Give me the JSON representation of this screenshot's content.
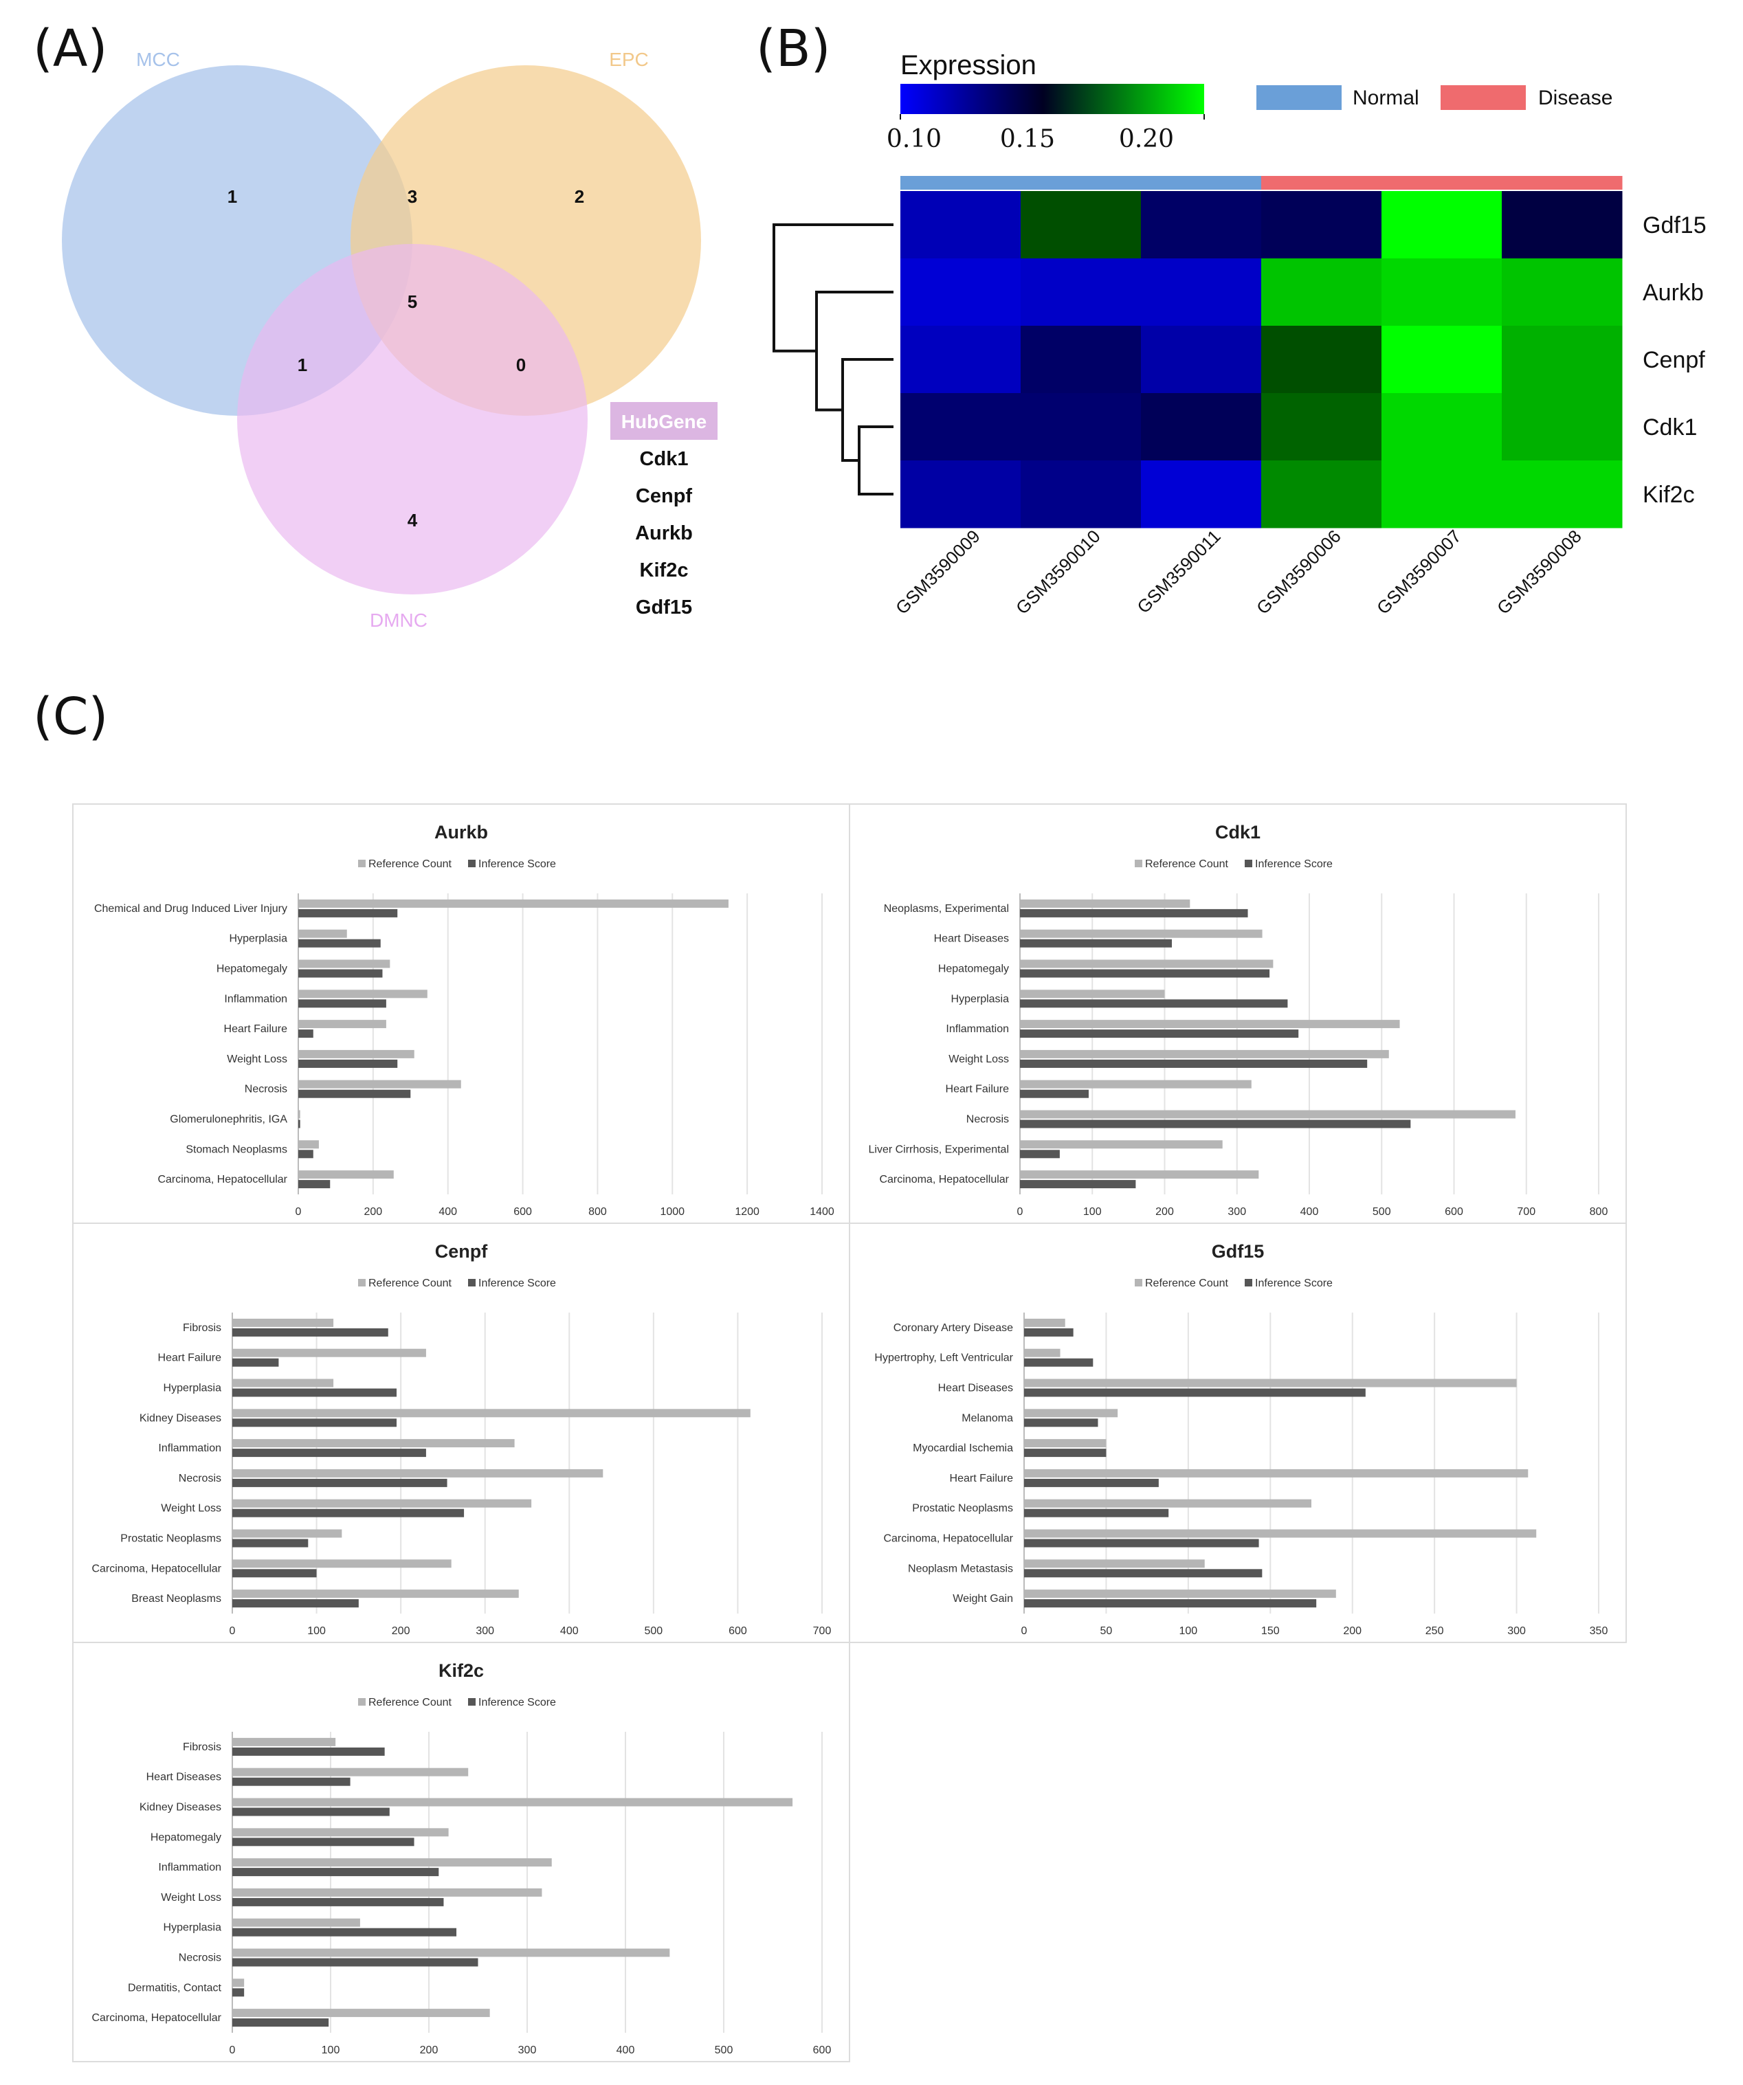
{
  "panels": {
    "a": "(A)",
    "b": "(B)",
    "c": "(C)"
  },
  "venn": {
    "sets": [
      {
        "name": "MCC",
        "color": "#a6c2ea",
        "label_color": "#a6c2ea"
      },
      {
        "name": "EPC",
        "color": "#f4cd8f",
        "label_color": "#f2c88a"
      },
      {
        "name": "DMNC",
        "color": "#eab8f0",
        "label_color": "#e6aaf0"
      }
    ],
    "regions": {
      "mcc_only": "1",
      "epc_only": "2",
      "mcc_epc": "3",
      "all_three": "5",
      "mcc_dmnc": "1",
      "epc_dmnc": "0",
      "dmnc_only": "4"
    },
    "hubgene_title": "HubGene",
    "hubgenes": [
      "Cdk1",
      "Cenpf",
      "Aurkb",
      "Kif2c",
      "Gdf15"
    ],
    "colors": {
      "hubgene_bg": "#dcb6e2"
    }
  },
  "heatmap": {
    "legend_title": "Expression",
    "scale_ticks": [
      "0.10",
      "0.15",
      "0.20"
    ],
    "groups": [
      {
        "name": "Normal",
        "color": "#6a9fd8"
      },
      {
        "name": "Disease",
        "color": "#ef6b6e"
      }
    ],
    "genes": [
      "Gdf15",
      "Aurkb",
      "Cenpf",
      "Cdk1",
      "Kif2c"
    ],
    "samples": [
      "GSM3590009",
      "GSM3590010",
      "GSM3590011",
      "GSM3590006",
      "GSM3590007",
      "GSM3590008"
    ],
    "sample_group": [
      "Normal",
      "Normal",
      "Normal",
      "Disease",
      "Disease",
      "Disease"
    ],
    "scale_colors": {
      "low": "#0000ff",
      "mid": "#000022",
      "high": "#00ff00"
    }
  },
  "chart_data": [
    {
      "type": "bar",
      "title": "Aurkb",
      "legend": [
        "Reference Count",
        "Inference Score"
      ],
      "categories": [
        "Chemical and Drug Induced Liver Injury",
        "Hyperplasia",
        "Hepatomegaly",
        "Inflammation",
        "Heart Failure",
        "Weight Loss",
        "Necrosis",
        "Glomerulonephritis, IGA",
        "Stomach Neoplasms",
        "Carcinoma, Hepatocellular"
      ],
      "series": [
        {
          "name": "Reference Count",
          "values": [
            1150,
            130,
            245,
            345,
            235,
            310,
            435,
            5,
            55,
            255
          ]
        },
        {
          "name": "Inference Score",
          "values": [
            265,
            220,
            225,
            235,
            40,
            265,
            300,
            5,
            40,
            85
          ]
        }
      ],
      "xticks": [
        "0",
        "200",
        "400",
        "600",
        "800",
        "1000",
        "1200",
        "1400"
      ],
      "xlim": [
        0,
        1400
      ]
    },
    {
      "type": "bar",
      "title": "Cdk1",
      "legend": [
        "Reference Count",
        "Inference Score"
      ],
      "categories": [
        "Neoplasms, Experimental",
        "Heart Diseases",
        "Hepatomegaly",
        "Hyperplasia",
        "Inflammation",
        "Weight Loss",
        "Heart Failure",
        "Necrosis",
        "Liver Cirrhosis, Experimental",
        "Carcinoma, Hepatocellular"
      ],
      "series": [
        {
          "name": "Reference Count",
          "values": [
            235,
            335,
            350,
            200,
            525,
            510,
            320,
            685,
            280,
            330
          ]
        },
        {
          "name": "Inference Score",
          "values": [
            315,
            210,
            345,
            370,
            385,
            480,
            95,
            540,
            55,
            160
          ]
        }
      ],
      "xticks": [
        "0",
        "100",
        "200",
        "300",
        "400",
        "500",
        "600",
        "700",
        "800"
      ],
      "xlim": [
        0,
        800
      ]
    },
    {
      "type": "bar",
      "title": "Cenpf",
      "legend": [
        "Reference Count",
        "Inference Score"
      ],
      "categories": [
        "Fibrosis",
        "Heart Failure",
        "Hyperplasia",
        "Kidney Diseases",
        "Inflammation",
        "Necrosis",
        "Weight Loss",
        "Prostatic Neoplasms",
        "Carcinoma, Hepatocellular",
        "Breast Neoplasms"
      ],
      "series": [
        {
          "name": "Reference Count",
          "values": [
            120,
            230,
            120,
            615,
            335,
            440,
            355,
            130,
            260,
            340
          ]
        },
        {
          "name": "Inference Score",
          "values": [
            185,
            55,
            195,
            195,
            230,
            255,
            275,
            90,
            100,
            150
          ]
        }
      ],
      "xticks": [
        "0",
        "100",
        "200",
        "300",
        "400",
        "500",
        "600",
        "700"
      ],
      "xlim": [
        0,
        700
      ]
    },
    {
      "type": "bar",
      "title": "Gdf15",
      "legend": [
        "Reference Count",
        "Inference Score"
      ],
      "categories": [
        "Coronary Artery Disease",
        "Hypertrophy, Left Ventricular",
        "Heart Diseases",
        "Melanoma",
        "Myocardial Ischemia",
        "Heart Failure",
        "Prostatic Neoplasms",
        "Carcinoma, Hepatocellular",
        "Neoplasm Metastasis",
        "Weight Gain"
      ],
      "series": [
        {
          "name": "Reference Count",
          "values": [
            25,
            22,
            300,
            57,
            50,
            307,
            175,
            312,
            110,
            190
          ]
        },
        {
          "name": "Inference Score",
          "values": [
            30,
            42,
            208,
            45,
            50,
            82,
            88,
            143,
            145,
            178
          ]
        }
      ],
      "xticks": [
        "0",
        "50",
        "100",
        "150",
        "200",
        "250",
        "300",
        "350"
      ],
      "xlim": [
        0,
        350
      ]
    },
    {
      "type": "bar",
      "title": "Kif2c",
      "legend": [
        "Reference Count",
        "Inference Score"
      ],
      "categories": [
        "Fibrosis",
        "Heart Diseases",
        "Kidney Diseases",
        "Hepatomegaly",
        "Inflammation",
        "Weight Loss",
        "Hyperplasia",
        "Necrosis",
        "Dermatitis, Contact",
        "Carcinoma, Hepatocellular"
      ],
      "series": [
        {
          "name": "Reference Count",
          "values": [
            105,
            240,
            570,
            220,
            325,
            315,
            130,
            445,
            12,
            262
          ]
        },
        {
          "name": "Inference Score",
          "values": [
            155,
            120,
            160,
            185,
            210,
            215,
            228,
            250,
            12,
            98
          ]
        }
      ],
      "xticks": [
        "0",
        "100",
        "200",
        "300",
        "400",
        "500",
        "600"
      ],
      "xlim": [
        0,
        600
      ]
    }
  ]
}
